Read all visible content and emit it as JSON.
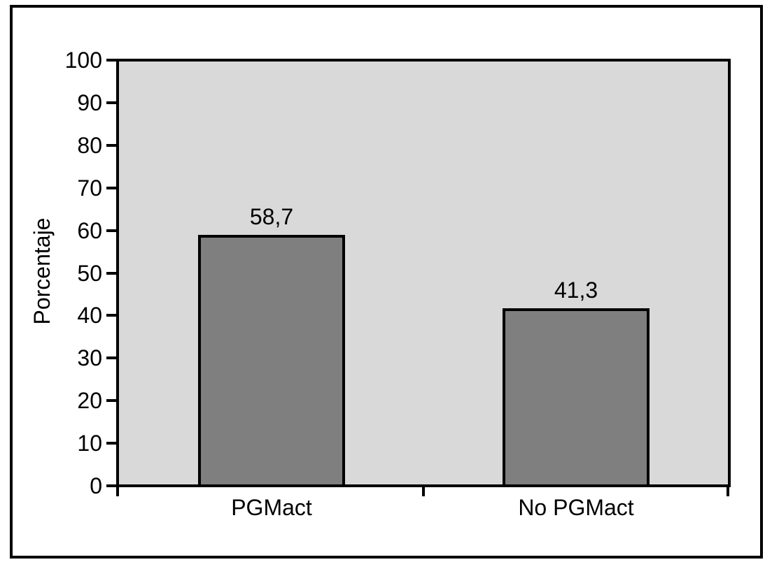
{
  "chart_data": {
    "type": "bar",
    "categories": [
      "PGMact",
      "No PGMact"
    ],
    "values": [
      58.7,
      41.3
    ],
    "value_labels": [
      "58,7",
      "41,3"
    ],
    "title": "",
    "xlabel": "",
    "ylabel": "Porcentaje",
    "ylim": [
      0,
      100
    ],
    "yticks": [
      0,
      10,
      20,
      30,
      40,
      50,
      60,
      70,
      80,
      90,
      100
    ],
    "grid": false,
    "legend": false,
    "bar_color": "#7f7f7f",
    "bar_border_color": "#000000",
    "plot_background": "#d9d9d9",
    "axis_color": "#000000",
    "frame_color": "#000000"
  }
}
